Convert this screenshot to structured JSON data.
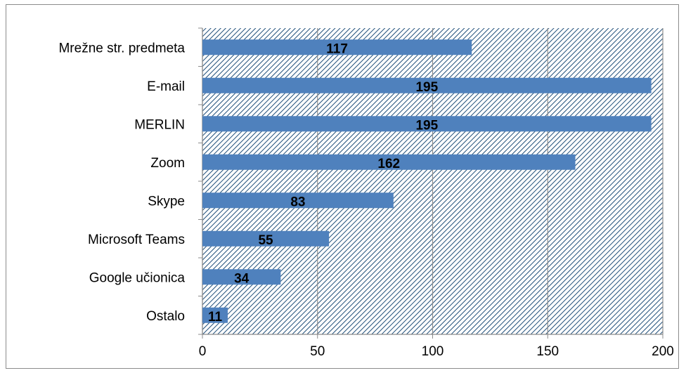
{
  "chart_data": {
    "type": "bar",
    "orientation": "horizontal",
    "categories": [
      "Mrežne str. predmeta",
      "E-mail",
      "MERLIN",
      "Zoom",
      "Skype",
      "Microsoft Teams",
      "Google učionica",
      "Ostalo"
    ],
    "values": [
      117,
      195,
      195,
      162,
      83,
      55,
      34,
      11
    ],
    "xlim": [
      0,
      200
    ],
    "xticks": [
      0,
      50,
      100,
      150,
      200
    ],
    "xtick_labels": [
      "0",
      "50",
      "100",
      "150",
      "200"
    ],
    "grid": true,
    "plot_background": "diagonal-hatch",
    "colors": {
      "bar": "#4f81bd",
      "hatch": "#1f4e79",
      "grid": "#8c8c8c"
    },
    "data_labels": true
  }
}
